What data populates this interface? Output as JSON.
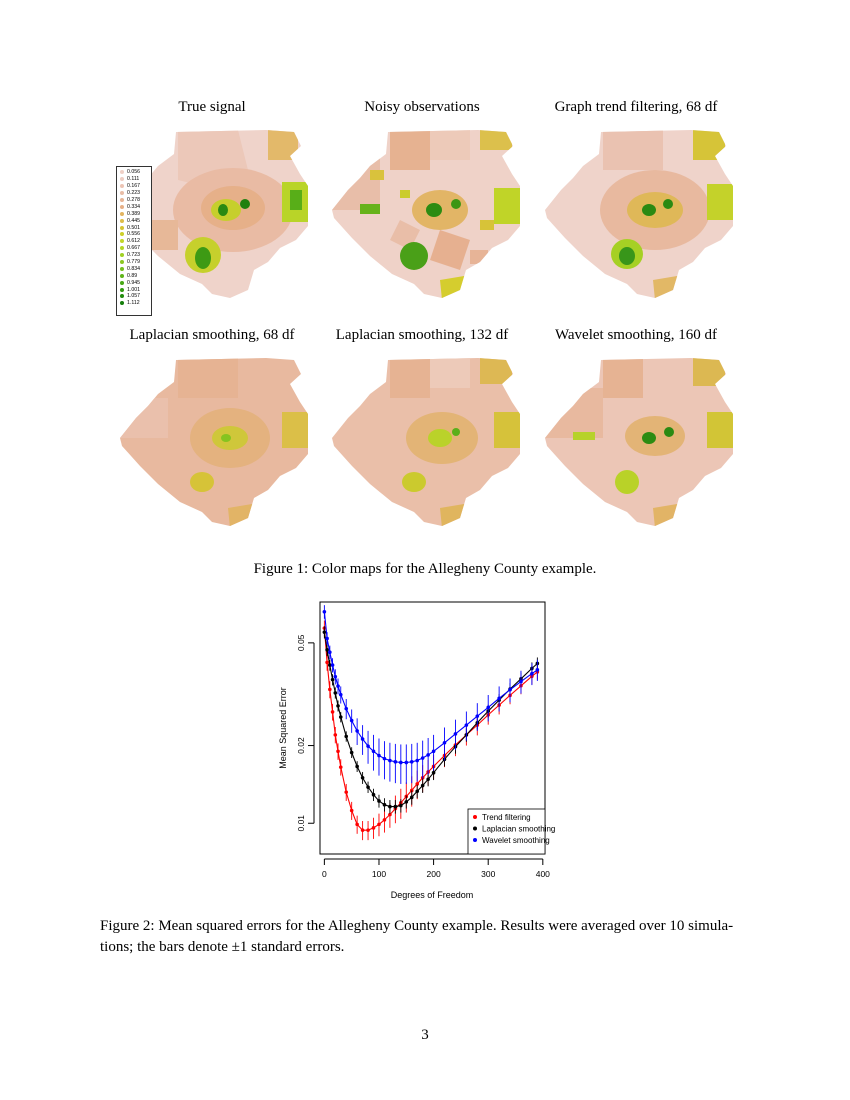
{
  "figure1": {
    "panels": [
      {
        "title": "True signal"
      },
      {
        "title": "Noisy observations"
      },
      {
        "title": "Graph trend filtering, 68 df"
      },
      {
        "title": "Laplacian smoothing, 68 df"
      },
      {
        "title": "Laplacian smoothing, 132 df"
      },
      {
        "title": "Wavelet smoothing, 160 df"
      }
    ],
    "legend": {
      "values": [
        "0.056",
        "0.111",
        "0.167",
        "0.223",
        "0.278",
        "0.334",
        "0.389",
        "0.445",
        "0.501",
        "0.556",
        "0.612",
        "0.667",
        "0.723",
        "0.779",
        "0.834",
        "0.89",
        "0.945",
        "1.001",
        "1.057",
        "1.112"
      ],
      "colors": [
        "#efd0c6",
        "#eecdc2",
        "#ecc4b4",
        "#e9bda6",
        "#e7b596",
        "#e6b088",
        "#e2b460",
        "#ddbd48",
        "#d6c432",
        "#cdcf2a",
        "#c2d628",
        "#b4d626",
        "#a0d024",
        "#8cc822",
        "#76bf1e",
        "#5fb41a",
        "#48a816",
        "#339a12",
        "#228c0e",
        "#147e0a"
      ]
    },
    "caption": "Figure 1: Color maps for the Allegheny County example."
  },
  "chart_data": {
    "type": "line",
    "xlabel": "Degrees of Freedom",
    "ylabel": "Mean Squared Error",
    "yscale": "log",
    "xlim": [
      -8,
      404
    ],
    "ylim": [
      0.0076,
      0.072
    ],
    "xticks": [
      0,
      100,
      200,
      300,
      400
    ],
    "yticks": [
      0.01,
      0.02,
      0.05
    ],
    "ytick_labels": [
      "0.01",
      "0.02",
      "0.05"
    ],
    "legend_position": "bottom-right",
    "series": [
      {
        "name": "Trend filtering",
        "color": "#ff0000",
        "x": [
          0,
          5,
          10,
          15,
          20,
          25,
          30,
          40,
          50,
          60,
          70,
          80,
          90,
          100,
          110,
          120,
          130,
          140,
          150,
          160,
          170,
          180,
          190,
          200,
          220,
          240,
          260,
          280,
          300,
          320,
          340,
          360,
          380,
          390
        ],
        "y": [
          0.057,
          0.042,
          0.033,
          0.027,
          0.022,
          0.019,
          0.0165,
          0.0132,
          0.0112,
          0.0099,
          0.0094,
          0.0094,
          0.0096,
          0.0099,
          0.0103,
          0.0108,
          0.0114,
          0.012,
          0.0127,
          0.0134,
          0.0142,
          0.015,
          0.0158,
          0.0166,
          0.0183,
          0.0201,
          0.022,
          0.024,
          0.0263,
          0.0287,
          0.0313,
          0.0341,
          0.0371,
          0.0386
        ],
        "err": [
          0.004,
          0.003,
          0.0025,
          0.002,
          0.0016,
          0.0014,
          0.0012,
          0.001,
          0.0009,
          0.0008,
          0.0008,
          0.0008,
          0.0009,
          0.001,
          0.0011,
          0.0012,
          0.0014,
          0.0016,
          0.0017,
          0.0018,
          0.0018,
          0.0018,
          0.0018,
          0.0018,
          0.0018,
          0.0019,
          0.002,
          0.0021,
          0.0022,
          0.0023,
          0.0024,
          0.0025,
          0.0026,
          0.0026
        ]
      },
      {
        "name": "Laplacian smoothing",
        "color": "#000000",
        "x": [
          0,
          5,
          10,
          15,
          20,
          25,
          30,
          40,
          50,
          60,
          70,
          80,
          90,
          100,
          110,
          120,
          130,
          140,
          150,
          160,
          170,
          180,
          190,
          200,
          220,
          240,
          260,
          280,
          300,
          320,
          340,
          360,
          380,
          390
        ],
        "y": [
          0.055,
          0.047,
          0.041,
          0.036,
          0.032,
          0.0285,
          0.0258,
          0.0217,
          0.0188,
          0.0166,
          0.015,
          0.0138,
          0.0129,
          0.0122,
          0.0118,
          0.0116,
          0.0116,
          0.0117,
          0.0121,
          0.0126,
          0.0133,
          0.014,
          0.0148,
          0.0157,
          0.0177,
          0.0198,
          0.022,
          0.0245,
          0.0272,
          0.03,
          0.0331,
          0.0363,
          0.0398,
          0.0416
        ],
        "err": [
          0.003,
          0.0025,
          0.002,
          0.0018,
          0.0016,
          0.0014,
          0.0012,
          0.001,
          0.0009,
          0.0008,
          0.0008,
          0.0007,
          0.0007,
          0.0007,
          0.0007,
          0.0007,
          0.0007,
          0.0007,
          0.0007,
          0.0008,
          0.0008,
          0.0009,
          0.0009,
          0.001,
          0.0011,
          0.0012,
          0.0013,
          0.0014,
          0.0016,
          0.0017,
          0.0018,
          0.002,
          0.0022,
          0.0023
        ]
      },
      {
        "name": "Wavelet smoothing",
        "color": "#0000ff",
        "x": [
          0,
          5,
          10,
          15,
          20,
          25,
          30,
          40,
          50,
          60,
          70,
          80,
          90,
          100,
          110,
          120,
          130,
          140,
          150,
          160,
          170,
          180,
          190,
          200,
          220,
          240,
          260,
          280,
          300,
          320,
          340,
          360,
          380,
          390
        ],
        "y": [
          0.066,
          0.052,
          0.046,
          0.041,
          0.037,
          0.034,
          0.0315,
          0.0278,
          0.025,
          0.0228,
          0.0212,
          0.0199,
          0.019,
          0.0183,
          0.0178,
          0.0175,
          0.0173,
          0.0172,
          0.0172,
          0.0173,
          0.0175,
          0.0179,
          0.0184,
          0.019,
          0.0205,
          0.0222,
          0.024,
          0.026,
          0.0281,
          0.0305,
          0.0329,
          0.0354,
          0.038,
          0.0393
        ],
        "err": [
          0.004,
          0.003,
          0.0028,
          0.0026,
          0.0025,
          0.0024,
          0.0024,
          0.0025,
          0.0026,
          0.0027,
          0.0028,
          0.0029,
          0.003,
          0.003,
          0.003,
          0.003,
          0.003,
          0.003,
          0.003,
          0.003,
          0.003,
          0.003,
          0.003,
          0.003,
          0.003,
          0.003,
          0.0031,
          0.0032,
          0.0033,
          0.0034,
          0.0035,
          0.0036,
          0.0037,
          0.0037
        ]
      }
    ]
  },
  "figure2": {
    "caption_line1": "Figure 2: Mean squared errors for the Allegheny County example. Results were averaged over 10 simula-",
    "caption_line2": "tions; the bars denote ±1 standard errors."
  },
  "page_number": "3"
}
